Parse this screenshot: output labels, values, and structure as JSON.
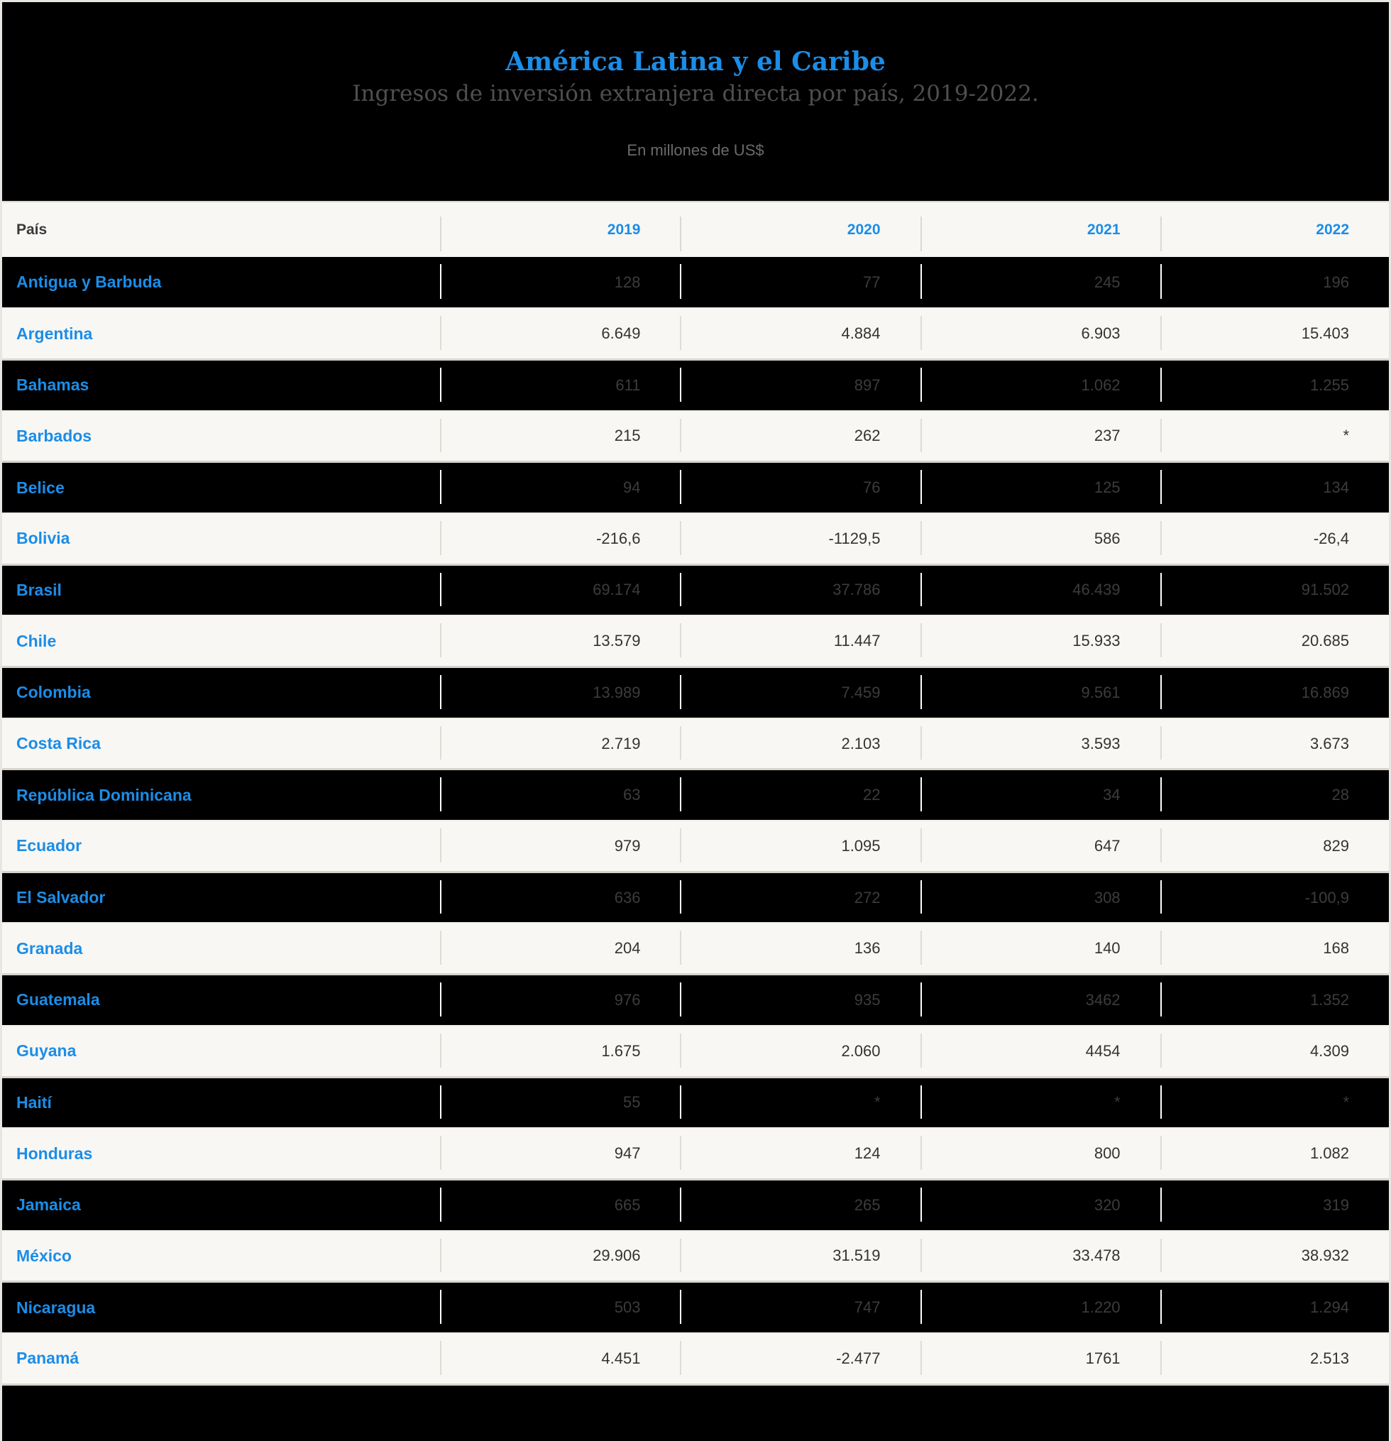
{
  "header": {
    "title": "América Latina y el Caribe",
    "subtitle": "Ingresos de inversión extranjera directa por país, 2019-2022.",
    "units": "En millones de US$"
  },
  "colors": {
    "accent_blue": "#1b8de8",
    "row_dark_bg": "#000000",
    "row_light_bg": "#f8f7f4",
    "dark_row_value_text": "#3c3c3c",
    "light_row_value_text": "#333333",
    "subtitle_gray": "#4f4f4f",
    "units_gray": "#6a6a6a"
  },
  "chart_data": {
    "type": "table",
    "title": "América Latina y el Caribe",
    "subtitle": "Ingresos de inversión extranjera directa por país, 2019-2022.",
    "units": "En millones de US$",
    "columns": [
      "País",
      "2019",
      "2020",
      "2021",
      "2022"
    ],
    "rows": [
      {
        "country": "Antigua y Barbuda",
        "values": [
          "128",
          "77",
          "245",
          "196"
        ]
      },
      {
        "country": "Argentina",
        "values": [
          "6.649",
          "4.884",
          "6.903",
          "15.403"
        ]
      },
      {
        "country": "Bahamas",
        "values": [
          "611",
          "897",
          "1.062",
          "1.255"
        ]
      },
      {
        "country": "Barbados",
        "values": [
          "215",
          "262",
          "237",
          "*"
        ]
      },
      {
        "country": "Belice",
        "values": [
          "94",
          "76",
          "125",
          "134"
        ]
      },
      {
        "country": "Bolivia",
        "values": [
          "-216,6",
          "-1129,5",
          "586",
          "-26,4"
        ]
      },
      {
        "country": "Brasil",
        "values": [
          "69.174",
          "37.786",
          "46.439",
          "91.502"
        ]
      },
      {
        "country": "Chile",
        "values": [
          "13.579",
          "11.447",
          "15.933",
          "20.685"
        ]
      },
      {
        "country": "Colombia",
        "values": [
          "13.989",
          "7.459",
          "9.561",
          "16.869"
        ]
      },
      {
        "country": "Costa Rica",
        "values": [
          "2.719",
          "2.103",
          "3.593",
          "3.673"
        ]
      },
      {
        "country": "República Dominicana",
        "values": [
          "63",
          "22",
          "34",
          "28"
        ]
      },
      {
        "country": "Ecuador",
        "values": [
          "979",
          "1.095",
          "647",
          "829"
        ]
      },
      {
        "country": "El Salvador",
        "values": [
          "636",
          "272",
          "308",
          "-100,9"
        ]
      },
      {
        "country": "Granada",
        "values": [
          "204",
          "136",
          "140",
          "168"
        ]
      },
      {
        "country": "Guatemala",
        "values": [
          "976",
          "935",
          "3462",
          "1.352"
        ]
      },
      {
        "country": "Guyana",
        "values": [
          "1.675",
          "2.060",
          "4454",
          "4.309"
        ]
      },
      {
        "country": "Haití",
        "values": [
          "55",
          "*",
          "*",
          "*"
        ]
      },
      {
        "country": "Honduras",
        "values": [
          "947",
          "124",
          "800",
          "1.082"
        ]
      },
      {
        "country": "Jamaica",
        "values": [
          "665",
          "265",
          "320",
          "319"
        ]
      },
      {
        "country": "México",
        "values": [
          "29.906",
          "31.519",
          "33.478",
          "38.932"
        ]
      },
      {
        "country": "Nicaragua",
        "values": [
          "503",
          "747",
          "1.220",
          "1.294"
        ]
      },
      {
        "country": "Panamá",
        "values": [
          "4.451",
          "-2.477",
          "1761",
          "2.513"
        ]
      }
    ]
  }
}
